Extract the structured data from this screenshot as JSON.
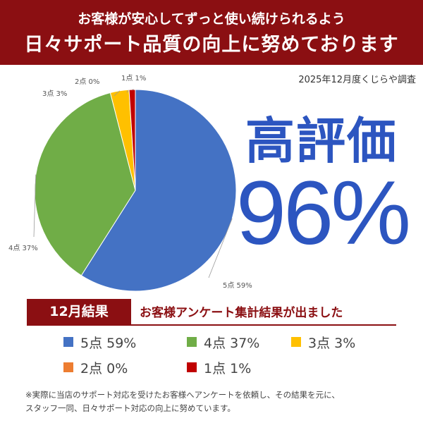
{
  "banner": {
    "line1": "お客様が安心してずっと使い続けられるよう",
    "line2": "日々サポート品質の向上に努めております"
  },
  "survey_source": "2025年12月度くじらや調査",
  "headline": "高評価",
  "big_percent": "96%",
  "result_badge": "12月結果",
  "result_title": "お客様アンケート集計結果が出ました",
  "footnote": {
    "line1": "※実際に当店のサポート対応を受けたお客様へアンケートを依頼し、その結果を元に、",
    "line2": "スタッフ一同、日々サポート対応の向上に努めています。"
  },
  "colors": {
    "brand": "#8b0f12",
    "headline": "#2c55c0"
  },
  "chart_data": {
    "type": "pie",
    "slices": [
      {
        "label": "5点",
        "value": 59,
        "display": "5点 59%",
        "legend": "5点 59%",
        "color": "#4472c4"
      },
      {
        "label": "4点",
        "value": 37,
        "display": "4点 37%",
        "legend": "4点 37%",
        "color": "#70ad47"
      },
      {
        "label": "3点",
        "value": 3,
        "display": "3点 3%",
        "legend": "3点 3%",
        "color": "#ffc000"
      },
      {
        "label": "2点",
        "value": 0,
        "display": "2点 0%",
        "legend": "2点 0%",
        "color": "#ed7d31"
      },
      {
        "label": "1点",
        "value": 1,
        "display": "1点 1%",
        "legend": "1点 1%",
        "color": "#c00000"
      }
    ],
    "start": "12 o'clock",
    "direction": "clockwise",
    "legend_position": "bottom"
  }
}
